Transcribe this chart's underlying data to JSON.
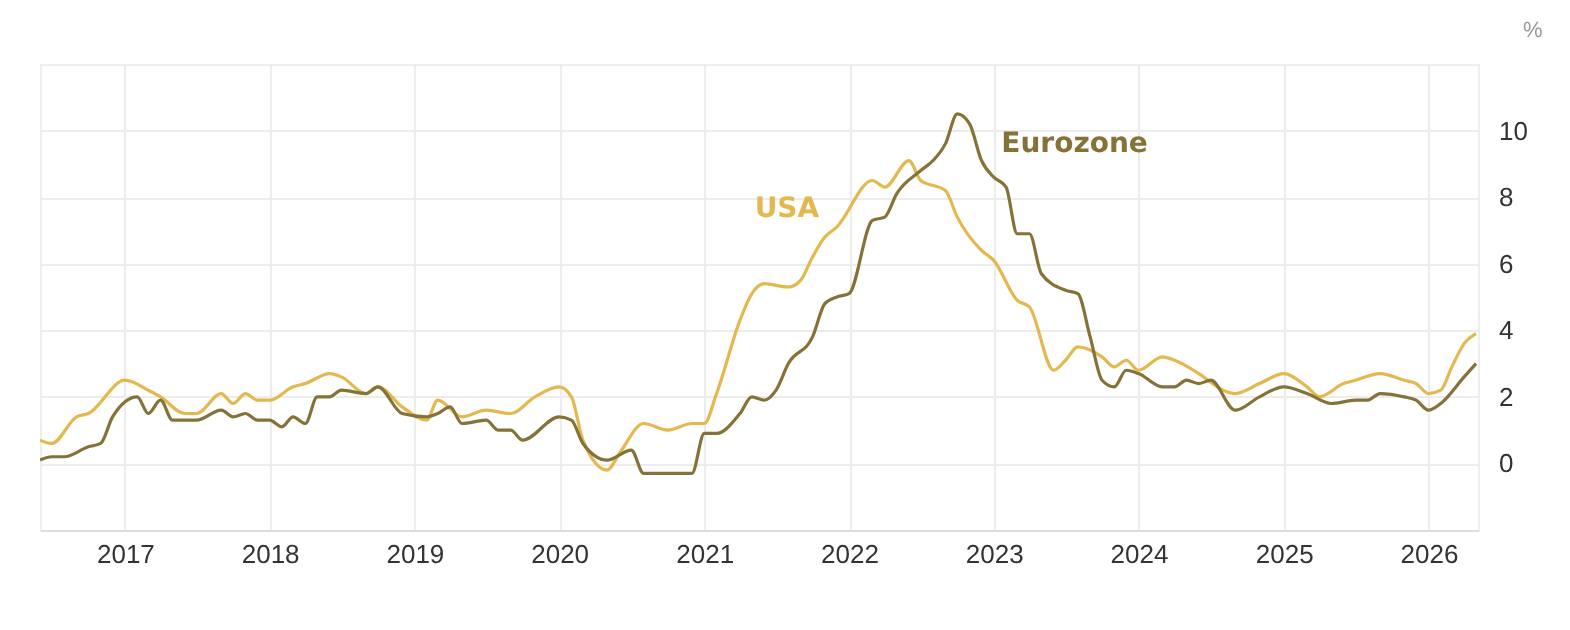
{
  "chart_data": {
    "type": "line",
    "ylabel": "%",
    "legend": false,
    "grid": true,
    "xlim": [
      "2016-06-01",
      "2026-05-06"
    ],
    "xticks": [
      "2017",
      "2018",
      "2019",
      "2020",
      "2021",
      "2022",
      "2023",
      "2024",
      "2025",
      "2026"
    ],
    "ylim": [
      -2,
      12
    ],
    "yticks": [
      0,
      2,
      4,
      6,
      8,
      10
    ],
    "series": [
      {
        "name": "USA",
        "color": "#e3b94f",
        "x": [
          "2016-06",
          "2016-07",
          "2016-09",
          "2016-10",
          "2017-01",
          "2017-03",
          "2017-04",
          "2017-06",
          "2017-07",
          "2017-09",
          "2017-10",
          "2017-11",
          "2017-12",
          "2018-01",
          "2018-03",
          "2018-04",
          "2018-06",
          "2018-07",
          "2018-09",
          "2018-10",
          "2018-12",
          "2019-02",
          "2019-03",
          "2019-05",
          "2019-07",
          "2019-09",
          "2019-11",
          "2020-01",
          "2020-02",
          "2020-03",
          "2020-05",
          "2020-06",
          "2020-08",
          "2020-10",
          "2020-12",
          "2021-01",
          "2021-02",
          "2021-04",
          "2021-05",
          "2021-06",
          "2021-08",
          "2021-09",
          "2021-10",
          "2021-11",
          "2021-12",
          "2022-03",
          "2022-04",
          "2022-06",
          "2022-07",
          "2022-09",
          "2022-10",
          "2022-12",
          "2023-01",
          "2023-03",
          "2023-04",
          "2023-06",
          "2023-07",
          "2023-08",
          "2023-10",
          "2023-11",
          "2023-12",
          "2024-01",
          "2024-03",
          "2024-04",
          "2024-06",
          "2024-08",
          "2024-09",
          "2024-11",
          "2025-01",
          "2025-03",
          "2025-04",
          "2025-06",
          "2025-07",
          "2025-09",
          "2025-11",
          "2025-12",
          "2026-01",
          "2026-02",
          "2026-03",
          "2026-04",
          "2026-05"
        ],
        "values": [
          0.7,
          0.6,
          1.4,
          1.5,
          2.5,
          2.2,
          2.0,
          1.5,
          1.5,
          2.1,
          1.8,
          2.1,
          1.9,
          1.9,
          2.3,
          2.4,
          2.7,
          2.6,
          2.1,
          2.3,
          1.7,
          1.3,
          1.9,
          1.4,
          1.6,
          1.5,
          2.0,
          2.3,
          2.0,
          0.7,
          -0.2,
          0.3,
          1.2,
          1.0,
          1.2,
          1.2,
          2.1,
          4.3,
          5.1,
          5.4,
          5.3,
          5.5,
          6.2,
          6.8,
          7.1,
          8.5,
          8.3,
          9.1,
          8.5,
          8.2,
          7.4,
          6.4,
          6.1,
          4.9,
          4.7,
          2.8,
          3.1,
          3.5,
          3.2,
          2.9,
          3.1,
          2.8,
          3.2,
          3.1,
          2.7,
          2.2,
          2.1,
          2.4,
          2.7,
          2.3,
          2.0,
          2.4,
          2.5,
          2.7,
          2.5,
          2.4,
          2.1,
          2.2,
          2.9,
          3.6,
          3.9
        ]
      },
      {
        "name": "Eurozone",
        "color": "#857238",
        "x": [
          "2016-06",
          "2016-07",
          "2016-08",
          "2016-10",
          "2016-11",
          "2016-12",
          "2017-02",
          "2017-03",
          "2017-04",
          "2017-05",
          "2017-07",
          "2017-09",
          "2017-10",
          "2017-11",
          "2017-12",
          "2018-01",
          "2018-02",
          "2018-03",
          "2018-04",
          "2018-05",
          "2018-06",
          "2018-07",
          "2018-09",
          "2018-10",
          "2018-12",
          "2019-02",
          "2019-03",
          "2019-04",
          "2019-05",
          "2019-07",
          "2019-08",
          "2019-09",
          "2019-10",
          "2020-01",
          "2020-02",
          "2020-03",
          "2020-05",
          "2020-07",
          "2020-08",
          "2020-12",
          "2021-01",
          "2021-02",
          "2021-04",
          "2021-05",
          "2021-06",
          "2021-07",
          "2021-08",
          "2021-10",
          "2021-11",
          "2021-12",
          "2022-01",
          "2022-03",
          "2022-04",
          "2022-05",
          "2022-07",
          "2022-08",
          "2022-09",
          "2022-10",
          "2022-11",
          "2022-12",
          "2023-01",
          "2023-02",
          "2023-03",
          "2023-04",
          "2023-05",
          "2023-07",
          "2023-08",
          "2023-09",
          "2023-10",
          "2023-11",
          "2023-12",
          "2024-01",
          "2024-03",
          "2024-04",
          "2024-05",
          "2024-06",
          "2024-07",
          "2024-09",
          "2024-11",
          "2025-01",
          "2025-03",
          "2025-05",
          "2025-07",
          "2025-08",
          "2025-09",
          "2025-11",
          "2025-12",
          "2026-01",
          "2026-02",
          "2026-04",
          "2026-05"
        ],
        "values": [
          0.1,
          0.2,
          0.2,
          0.5,
          0.6,
          1.4,
          2.0,
          1.5,
          1.9,
          1.3,
          1.3,
          1.6,
          1.4,
          1.5,
          1.3,
          1.3,
          1.1,
          1.4,
          1.2,
          2.0,
          2.0,
          2.2,
          2.1,
          2.3,
          1.5,
          1.4,
          1.5,
          1.7,
          1.2,
          1.3,
          1.0,
          1.0,
          0.7,
          1.4,
          1.3,
          0.6,
          0.1,
          0.4,
          -0.3,
          -0.3,
          0.9,
          0.9,
          1.5,
          2.0,
          1.9,
          2.2,
          3.0,
          3.8,
          4.8,
          5.0,
          5.1,
          7.3,
          7.4,
          8.1,
          8.8,
          9.1,
          9.6,
          10.5,
          10.2,
          9.1,
          8.6,
          8.3,
          6.9,
          6.9,
          5.7,
          5.2,
          5.1,
          3.8,
          2.5,
          2.3,
          2.8,
          2.7,
          2.3,
          2.3,
          2.5,
          2.4,
          2.5,
          1.6,
          2.0,
          2.3,
          2.1,
          1.8,
          1.9,
          1.9,
          2.1,
          2.0,
          1.9,
          1.6,
          1.8,
          2.6,
          3.0
        ]
      }
    ]
  }
}
